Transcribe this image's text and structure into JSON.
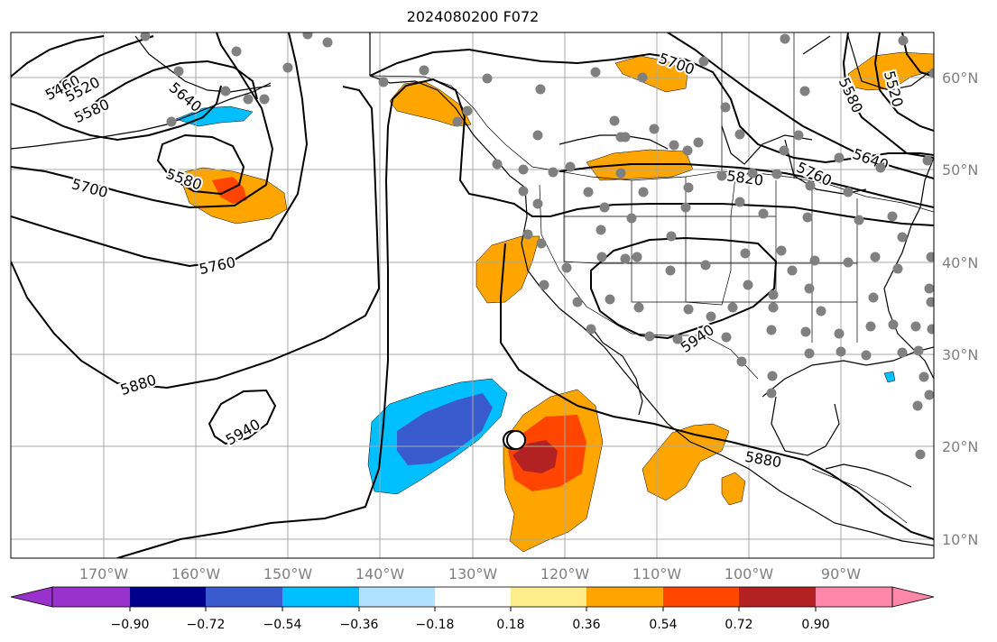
{
  "title": "2024080200 F072",
  "map": {
    "projection": "equirectangular",
    "lon_range": [
      -180,
      -80
    ],
    "lat_range": [
      8,
      66
    ],
    "gridlines": true,
    "lon_labels": [
      "170°W",
      "160°W",
      "150°W",
      "140°W",
      "130°W",
      "120°W",
      "110°W",
      "100°W",
      "90°W"
    ],
    "lat_labels": [
      "60°N",
      "50°N",
      "40°N",
      "30°N",
      "20°N",
      "10°N"
    ],
    "contour_labels": [
      "5460",
      "5520",
      "5580",
      "5640",
      "5580",
      "5700",
      "5760",
      "5880",
      "5940",
      "5700",
      "5520",
      "5580",
      "5640",
      "5760",
      "5820",
      "5940",
      "5880"
    ],
    "stations_marker": "gray-dot",
    "storm_marker": "black-circle"
  },
  "colorbar": {
    "ticks": [
      "−0.90",
      "−0.72",
      "−0.54",
      "−0.36",
      "−0.18",
      "0.18",
      "0.36",
      "0.54",
      "0.72",
      "0.90"
    ],
    "colors": [
      "#9932cc",
      "#00008b",
      "#3a5bcd",
      "#00bfff",
      "#b0e2ff",
      "#ffffff",
      "#ffec8b",
      "#ffa500",
      "#ff4500",
      "#b22222",
      "#ff88aa"
    ],
    "extend": "both"
  },
  "colors": {
    "orange": "#ffa500",
    "red_orange": "#ff4500",
    "dark_red": "#b22222",
    "blue": "#3a5bcd",
    "light_blue": "#00bfff",
    "station_gray": "#808080"
  }
}
